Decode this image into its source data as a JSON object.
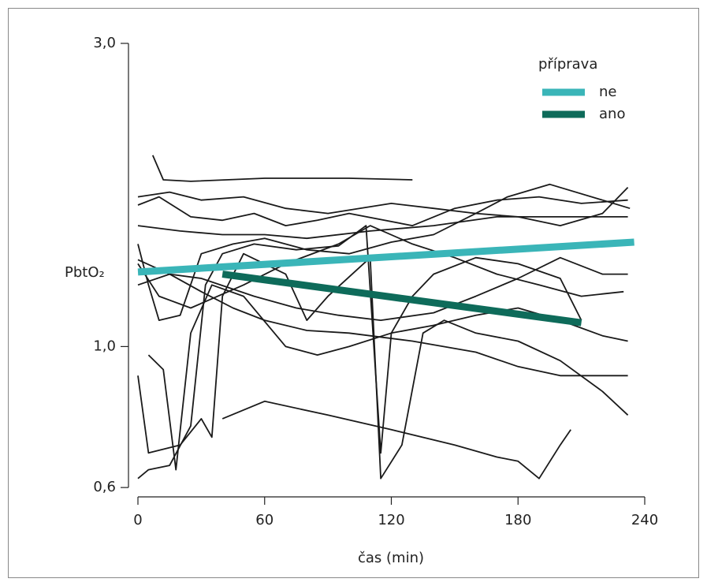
{
  "chart_data": {
    "type": "line",
    "xlabel": "čas (min)",
    "ylabel": "PbtO₂",
    "log_y": true,
    "xlim": [
      0,
      240
    ],
    "xticks": [
      0,
      60,
      120,
      180,
      240
    ],
    "ylim": [
      0.58,
      3.0
    ],
    "yticks": [
      {
        "value": 0.6,
        "label": "0,6"
      },
      {
        "value": 1.0,
        "label": "1,0"
      },
      {
        "value": 3.0,
        "label": "3,0"
      }
    ],
    "legend_title": "příprava",
    "legend_position": "upper right",
    "series": [
      {
        "name": "ne",
        "color": "#3ab5b8",
        "x": [
          0,
          235
        ],
        "values": [
          1.31,
          1.46
        ]
      },
      {
        "name": "ano",
        "color": "#0e6b5a",
        "x": [
          40,
          210
        ],
        "values": [
          1.3,
          1.09
        ]
      }
    ],
    "trace_color": "#1a1a1a",
    "traces": [
      {
        "x": [
          7,
          12,
          25,
          60,
          100,
          130
        ],
        "values": [
          2.0,
          1.83,
          1.82,
          1.84,
          1.84,
          1.83
        ]
      },
      {
        "x": [
          0,
          15,
          30,
          50,
          70,
          90,
          120,
          140,
          160,
          180,
          200,
          220,
          232
        ],
        "values": [
          1.72,
          1.75,
          1.7,
          1.72,
          1.65,
          1.62,
          1.68,
          1.65,
          1.62,
          1.6,
          1.55,
          1.62,
          1.78
        ]
      },
      {
        "x": [
          0,
          10,
          25,
          40,
          55,
          70,
          85,
          100,
          130,
          150,
          170,
          190,
          210,
          232
        ],
        "values": [
          1.67,
          1.72,
          1.6,
          1.58,
          1.62,
          1.55,
          1.58,
          1.62,
          1.55,
          1.65,
          1.7,
          1.72,
          1.68,
          1.7
        ]
      },
      {
        "x": [
          0,
          20,
          40,
          60,
          80,
          110,
          140,
          170,
          200,
          232
        ],
        "values": [
          1.55,
          1.52,
          1.5,
          1.5,
          1.48,
          1.52,
          1.55,
          1.6,
          1.6,
          1.6
        ]
      },
      {
        "x": [
          0,
          5,
          10,
          20,
          30,
          45,
          60,
          80,
          100,
          120,
          140,
          160,
          175,
          195,
          220,
          233
        ],
        "values": [
          1.45,
          1.25,
          1.1,
          1.12,
          1.4,
          1.45,
          1.48,
          1.42,
          1.4,
          1.46,
          1.5,
          1.62,
          1.72,
          1.8,
          1.7,
          1.65
        ]
      },
      {
        "x": [
          0,
          5,
          15,
          25,
          32,
          40,
          55,
          75,
          95,
          108,
          115,
          120,
          130,
          140,
          160,
          180,
          200,
          210
        ],
        "values": [
          0.62,
          0.64,
          0.65,
          0.75,
          1.25,
          1.4,
          1.45,
          1.42,
          1.44,
          1.55,
          0.68,
          1.05,
          1.2,
          1.3,
          1.38,
          1.35,
          1.28,
          1.1
        ]
      },
      {
        "x": [
          0,
          5,
          20,
          30,
          35,
          40,
          50,
          70,
          80,
          90,
          110,
          115,
          125,
          135,
          145,
          160,
          180,
          200,
          220,
          232
        ],
        "values": [
          0.9,
          0.68,
          0.7,
          0.77,
          0.72,
          1.2,
          1.4,
          1.3,
          1.1,
          1.2,
          1.38,
          0.62,
          0.7,
          1.05,
          1.1,
          1.05,
          1.02,
          0.95,
          0.85,
          0.78
        ]
      },
      {
        "x": [
          5,
          12,
          18,
          25,
          35,
          50,
          70,
          85,
          100,
          120,
          140,
          160,
          180,
          200,
          220,
          232
        ],
        "values": [
          0.97,
          0.92,
          0.64,
          1.05,
          1.25,
          1.2,
          1.0,
          0.97,
          1.0,
          1.05,
          1.08,
          1.12,
          1.15,
          1.1,
          1.04,
          1.02
        ]
      },
      {
        "x": [
          0,
          15,
          30,
          45,
          60,
          80,
          100,
          130,
          160,
          180,
          200,
          220,
          232
        ],
        "values": [
          1.37,
          1.3,
          1.22,
          1.15,
          1.1,
          1.06,
          1.05,
          1.02,
          0.98,
          0.93,
          0.9,
          0.9,
          0.9
        ]
      },
      {
        "x": [
          40,
          60,
          90,
          120,
          150,
          170,
          180,
          190,
          200,
          205
        ],
        "values": [
          0.77,
          0.82,
          0.78,
          0.74,
          0.7,
          0.67,
          0.66,
          0.62,
          0.7,
          0.74
        ]
      },
      {
        "x": [
          0,
          15,
          30,
          55,
          75,
          95,
          115,
          140,
          160,
          180,
          200,
          220,
          232
        ],
        "values": [
          1.25,
          1.3,
          1.28,
          1.2,
          1.15,
          1.12,
          1.1,
          1.13,
          1.2,
          1.28,
          1.38,
          1.3,
          1.3
        ]
      },
      {
        "x": [
          0,
          10,
          25,
          50,
          70,
          95,
          110,
          130,
          150,
          170,
          190,
          210,
          230
        ],
        "values": [
          1.35,
          1.2,
          1.15,
          1.25,
          1.35,
          1.45,
          1.55,
          1.45,
          1.38,
          1.3,
          1.25,
          1.2,
          1.22
        ]
      }
    ]
  }
}
